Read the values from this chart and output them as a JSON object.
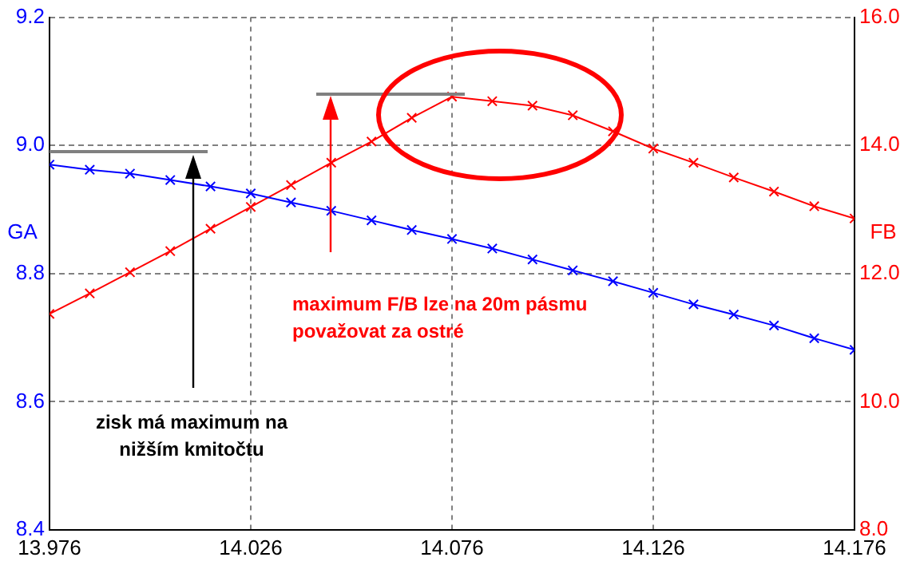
{
  "chart_data": {
    "type": "line",
    "ylabel": "GA",
    "y2label": "FB",
    "x": [
      13.976,
      13.986,
      13.996,
      14.006,
      14.016,
      14.026,
      14.036,
      14.046,
      14.056,
      14.066,
      14.076,
      14.086,
      14.096,
      14.106,
      14.116,
      14.126,
      14.136,
      14.146,
      14.156,
      14.166,
      14.176
    ],
    "series": [
      {
        "color": "#0000ff",
        "values": [
          8.97,
          8.962,
          8.956,
          8.946,
          8.936,
          8.925,
          8.911,
          8.898,
          8.883,
          8.868,
          8.854,
          8.839,
          8.822,
          8.805,
          8.788,
          8.77,
          8.752,
          8.736,
          8.719,
          8.699,
          8.681
        ]
      },
      {
        "color": "#ff0000",
        "axis": "y2",
        "values": [
          11.37,
          11.69,
          12.02,
          12.35,
          12.7,
          13.04,
          13.38,
          13.73,
          14.06,
          14.43,
          14.76,
          14.69,
          14.62,
          14.47,
          14.22,
          13.95,
          13.73,
          13.5,
          13.28,
          13.05,
          12.86
        ]
      }
    ],
    "xlim": [
      13.976,
      14.176
    ],
    "xticks": [
      13.976,
      14.026,
      14.076,
      14.126,
      14.176
    ],
    "ylim": [
      8.4,
      9.2
    ],
    "yticks": [
      8.4,
      8.6,
      8.8,
      {
        "value": 9,
        "label": "9.0"
      },
      9.2
    ],
    "y2lim": [
      8,
      16
    ],
    "y2ticks": [
      {
        "value": 8,
        "label": "8.0"
      },
      {
        "value": 10,
        "label": "10.0"
      },
      {
        "value": 12,
        "label": "12.0"
      },
      {
        "value": 14,
        "label": "14.0"
      },
      {
        "value": 16,
        "label": "16.0"
      }
    ],
    "grid": true,
    "marker": "cross",
    "line_style": "solid",
    "legend": false,
    "annotations": [
      "zisk má maximum na\nnižším kmitočtu",
      "maximum F/B lze na 20m pásmu\npovažovat za ostré"
    ]
  }
}
